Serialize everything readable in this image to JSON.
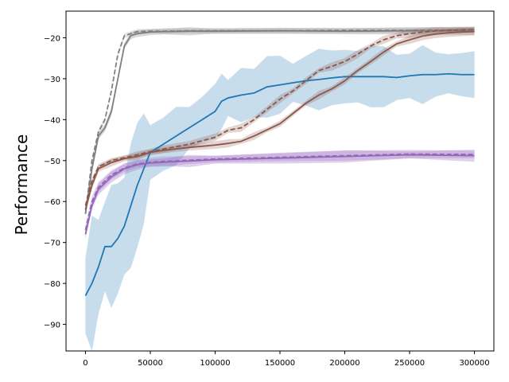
{
  "chart_data": {
    "type": "line",
    "title": "",
    "xlabel": "",
    "ylabel": "Performance",
    "xlim": [
      -15000,
      315000
    ],
    "ylim": [
      -96.5,
      -13.5
    ],
    "x_ticks": [
      0,
      50000,
      100000,
      150000,
      200000,
      250000,
      300000
    ],
    "x_tick_labels": [
      "0",
      "50000",
      "100000",
      "150000",
      "200000",
      "250000",
      "300000"
    ],
    "y_ticks": [
      -90,
      -80,
      -70,
      -60,
      -50,
      -40,
      -30,
      -20
    ],
    "y_tick_labels": [
      "−90",
      "−80",
      "−70",
      "−60",
      "−50",
      "−40",
      "−30",
      "−20"
    ],
    "grid": false,
    "legend": "none",
    "series": [
      {
        "color": "#1f77b4",
        "style": "solid",
        "band_width": 6,
        "band_opacity": 0.25,
        "x": [
          0,
          5000,
          10000,
          15000,
          20000,
          25000,
          30000,
          35000,
          40000,
          45000,
          50000,
          60000,
          70000,
          80000,
          90000,
          100000,
          105000,
          110000,
          120000,
          130000,
          140000,
          150000,
          160000,
          170000,
          180000,
          190000,
          200000,
          210000,
          220000,
          230000,
          240000,
          250000,
          260000,
          270000,
          280000,
          290000,
          300000
        ],
        "values": [
          -83,
          -80,
          -76,
          -71,
          -71,
          -69,
          -66,
          -61,
          -56,
          -52,
          -48,
          -46,
          -44,
          -42,
          -40,
          -38,
          -35.5,
          -34.7,
          -34,
          -33.5,
          -32,
          -31.5,
          -31,
          -30.5,
          -30.2,
          -29.8,
          -29.5,
          -29.5,
          -29.5,
          -29.5,
          -29.7,
          -29.3,
          -29.0,
          -29.0,
          -28.8,
          -29.0,
          -29.0
        ]
      },
      {
        "color": "#7f7f7f",
        "style": "solid",
        "band_width": 0.8,
        "band_opacity": 0.3,
        "x": [
          0,
          5000,
          10000,
          15000,
          20000,
          25000,
          30000,
          35000,
          40000,
          50000,
          60000,
          80000,
          100000,
          150000,
          200000,
          250000,
          300000
        ],
        "values": [
          -63,
          -52,
          -44,
          -42,
          -38,
          -30,
          -22,
          -19.5,
          -19,
          -18.6,
          -18.5,
          -18.4,
          -18.4,
          -18.3,
          -18.4,
          -18.3,
          -18.3
        ]
      },
      {
        "color": "#7f7f7f",
        "style": "dashed",
        "band_width": 0.6,
        "band_opacity": 0.2,
        "x": [
          0,
          5000,
          10000,
          15000,
          20000,
          25000,
          30000,
          35000,
          40000,
          50000,
          60000,
          80000,
          100000,
          150000,
          200000,
          250000,
          300000
        ],
        "values": [
          -63,
          -50,
          -43,
          -40,
          -33,
          -24,
          -19.5,
          -19,
          -18.5,
          -18.4,
          -18.4,
          -18.3,
          -18.3,
          -18.3,
          -18.2,
          -18.2,
          -18.0
        ]
      },
      {
        "color": "#8c564b",
        "style": "solid",
        "band_width": 0.8,
        "band_opacity": 0.25,
        "x": [
          0,
          5000,
          10000,
          20000,
          30000,
          40000,
          50000,
          60000,
          80000,
          100000,
          110000,
          120000,
          130000,
          140000,
          150000,
          160000,
          170000,
          180000,
          190000,
          200000,
          210000,
          220000,
          230000,
          240000,
          250000,
          260000,
          270000,
          280000,
          290000,
          300000
        ],
        "values": [
          -62,
          -56,
          -52,
          -50.5,
          -49.5,
          -49,
          -48,
          -47.5,
          -46.8,
          -46.2,
          -45.8,
          -45.3,
          -44,
          -42.5,
          -41,
          -38.5,
          -36,
          -34,
          -32.5,
          -30.5,
          -28,
          -25.8,
          -23.5,
          -21.5,
          -20.5,
          -19.6,
          -19.1,
          -18.8,
          -18.6,
          -18.5
        ]
      },
      {
        "color": "#8c564b",
        "style": "dashed",
        "band_width": 0.8,
        "band_opacity": 0.25,
        "x": [
          0,
          5000,
          10000,
          20000,
          30000,
          40000,
          50000,
          60000,
          80000,
          100000,
          110000,
          120000,
          130000,
          140000,
          150000,
          160000,
          170000,
          180000,
          190000,
          200000,
          210000,
          220000,
          230000,
          240000,
          250000,
          260000,
          270000,
          280000,
          290000,
          300000
        ],
        "values": [
          -61,
          -55,
          -51.5,
          -50,
          -49.3,
          -48.6,
          -47.8,
          -47.2,
          -46,
          -44.3,
          -42.6,
          -42,
          -40,
          -37.5,
          -35,
          -33,
          -30.5,
          -28,
          -27,
          -25.8,
          -24,
          -22,
          -20.5,
          -19.5,
          -19.0,
          -18.6,
          -18.3,
          -18.2,
          -18.1,
          -18.0
        ]
      },
      {
        "color": "#9467bd",
        "style": "solid",
        "band_width": 1.2,
        "band_opacity": 0.3,
        "x": [
          0,
          5000,
          10000,
          20000,
          30000,
          40000,
          50000,
          60000,
          80000,
          100000,
          150000,
          200000,
          250000,
          300000
        ],
        "values": [
          -68,
          -61,
          -57,
          -54,
          -52,
          -51,
          -50.6,
          -50.4,
          -50.1,
          -49.8,
          -49.4,
          -49.0,
          -48.6,
          -48.8
        ]
      },
      {
        "color": "#9467bd",
        "style": "dashed",
        "band_width": 1.0,
        "band_opacity": 0.25,
        "x": [
          0,
          5000,
          10000,
          20000,
          30000,
          40000,
          50000,
          60000,
          80000,
          100000,
          150000,
          200000,
          250000,
          300000
        ],
        "values": [
          -67,
          -60,
          -56.5,
          -53.5,
          -51.8,
          -50.8,
          -50.4,
          -50.2,
          -49.9,
          -49.6,
          -49.2,
          -48.8,
          -48.4,
          -48.5
        ]
      }
    ]
  }
}
